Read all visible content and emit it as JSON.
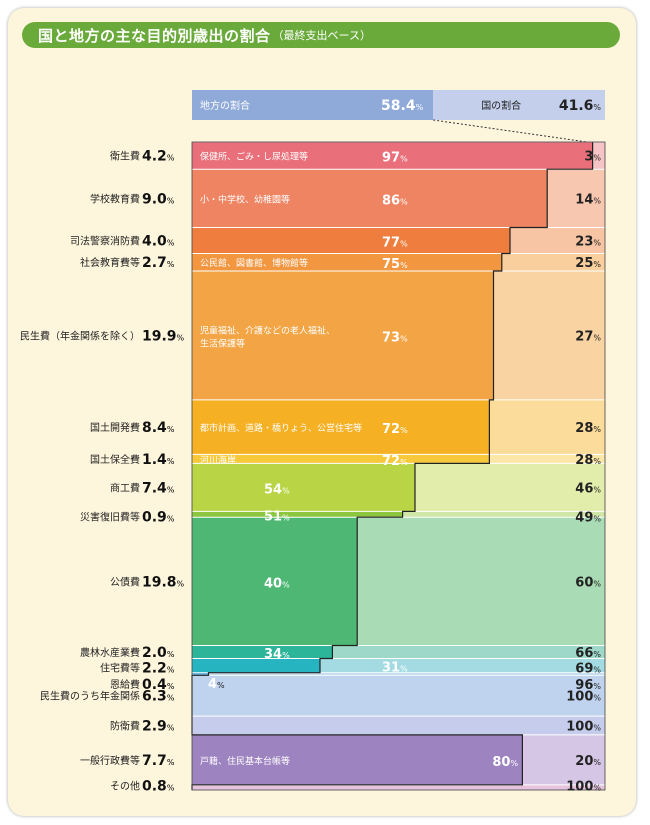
{
  "title": "国と地方の主な目的別歳出の割合",
  "subtitle": "（最終支出ベース）",
  "header": {
    "local_label": "地方の割合",
    "local_pct": "58.4%",
    "local_value": 58.4,
    "national_label": "国の割合",
    "national_pct": "41.6%",
    "national_value": 41.6
  },
  "chart_data": {
    "type": "bar",
    "title": "国と地方の主な目的別歳出の割合",
    "subtitle": "（最終支出ベース）",
    "series": [
      {
        "name": "地方の割合",
        "total": 58.4
      },
      {
        "name": "国の割合",
        "total": 41.6
      }
    ],
    "categories": [
      {
        "name": "衛生費",
        "share": 4.2,
        "local": 97,
        "national": 3,
        "desc": "保健所、ごみ・し尿処理等",
        "color": "#e9707a",
        "light": "#f6c4c6"
      },
      {
        "name": "学校教育費",
        "share": 9.0,
        "local": 86,
        "national": 14,
        "desc": "小・中学校、幼稚園等",
        "color": "#ef8462",
        "light": "#f8c7b0"
      },
      {
        "name": "司法警察消防費",
        "share": 4.0,
        "local": 77,
        "national": 23,
        "desc": "",
        "color": "#ef7e3e",
        "light": "#f7c5a4"
      },
      {
        "name": "社会教育費等",
        "share": 2.7,
        "local": 75,
        "national": 25,
        "desc": "公民館、図書館、博物館等",
        "color": "#f2963f",
        "light": "#f9cf9e"
      },
      {
        "name": "民生費（年金関係を除く）",
        "share": 19.9,
        "local": 73,
        "national": 27,
        "desc": "児童福祉、介護などの老人福祉、生活保護等",
        "color": "#f3a444",
        "light": "#f9d4a2"
      },
      {
        "name": "国土開発費",
        "share": 8.4,
        "local": 72,
        "national": 28,
        "desc": "都市計画、道路・橋りょう、公営住宅等",
        "color": "#f5b024",
        "light": "#fbdc9a"
      },
      {
        "name": "国土保全費",
        "share": 1.4,
        "local": 72,
        "national": 28,
        "desc": "河川海岸",
        "color": "#f7c93a",
        "light": "#fce7a8"
      },
      {
        "name": "商工費",
        "share": 7.4,
        "local": 54,
        "national": 46,
        "desc": "",
        "color": "#b9d444",
        "light": "#e2ecab"
      },
      {
        "name": "災害復旧費等",
        "share": 0.9,
        "local": 51,
        "national": 49,
        "desc": "",
        "color": "#8cc63f",
        "light": "#cfe6a8"
      },
      {
        "name": "公債費",
        "share": 19.8,
        "local": 40,
        "national": 60,
        "desc": "",
        "color": "#4db773",
        "light": "#a9dcb4"
      },
      {
        "name": "農林水産業費",
        "share": 2.0,
        "local": 34,
        "national": 66,
        "desc": "",
        "color": "#2db59a",
        "light": "#9ed8c9"
      },
      {
        "name": "住宅費等",
        "share": 2.2,
        "local": 31,
        "national": 69,
        "desc": "",
        "color": "#26b4c1",
        "light": "#a4dbe3"
      },
      {
        "name": "恩給費",
        "share": 0.4,
        "local": 4,
        "national": 96,
        "desc": "",
        "color": "#46a4d8",
        "light": "#b2d6ee"
      },
      {
        "name": "民生費のうち年金関係",
        "share": 6.3,
        "local": 0,
        "national": 100,
        "desc": "",
        "color": "#8fb0dc",
        "light": "#bfd3ee"
      },
      {
        "name": "防衛費",
        "share": 2.9,
        "local": 0,
        "national": 100,
        "desc": "",
        "color": "#9aa6da",
        "light": "#c6cdec"
      },
      {
        "name": "一般行政費等",
        "share": 7.7,
        "local": 80,
        "national": 20,
        "desc": "戸籍、住民基本台帳等",
        "color": "#9d83c0",
        "light": "#d4c6e4"
      },
      {
        "name": "その他",
        "share": 0.8,
        "local": 0,
        "national": 100,
        "desc": "",
        "color": "#c57bb6",
        "light": "#e6c4de"
      }
    ],
    "share_labels": [
      "4.2",
      "9.0",
      "4.0",
      "2.7",
      "19.9",
      "8.4",
      "1.4",
      "7.4",
      "0.9",
      "19.8",
      "2.0",
      "2.2",
      "0.4",
      "6.3",
      "2.9",
      "7.7",
      "0.8"
    ],
    "pct_unit": "%"
  }
}
